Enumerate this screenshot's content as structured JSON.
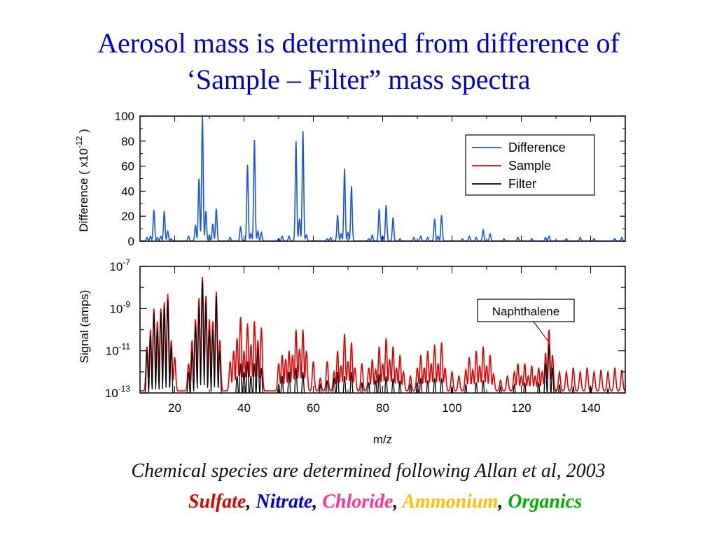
{
  "slide": {
    "title_line1": "Aerosol mass is determined from difference of",
    "title_line2": "‘Sample – Filter” mass spectra",
    "caption": "Chemical species are determined following Allan et al, 2003",
    "species": [
      {
        "label": "Sulfate",
        "color": "#e00000"
      },
      {
        "label": "Nitrate",
        "color": "#0000d0"
      },
      {
        "label": "Chloride",
        "color": "#ff3399"
      },
      {
        "label": "Ammonium",
        "color": "#ffc000"
      },
      {
        "label": "Organics",
        "color": "#00b000"
      }
    ],
    "separator": ", ",
    "title_color": "#0000cc"
  },
  "chart_data": [
    {
      "type": "line",
      "ylabel": "Difference  ( x10",
      "ylabel_exp": "-12",
      "ylabel_close": " )",
      "xlim": [
        10,
        150
      ],
      "ylim": [
        0,
        100
      ],
      "yticks": [
        "0",
        "20",
        "40",
        "60",
        "80",
        "100"
      ],
      "legend": {
        "placement": "top-right",
        "entries": [
          {
            "name": "Difference",
            "color": "#1a56d6"
          },
          {
            "name": "Sample",
            "color": "#e00000"
          },
          {
            "name": "Filter",
            "color": "#000000"
          }
        ]
      },
      "series": [
        {
          "name": "Difference",
          "color": "#1a56d6",
          "peaks": [
            [
              12,
              3
            ],
            [
              13,
              4
            ],
            [
              14,
              25
            ],
            [
              15,
              3
            ],
            [
              16,
              4
            ],
            [
              17,
              24
            ],
            [
              18,
              8
            ],
            [
              19,
              2
            ],
            [
              24,
              4
            ],
            [
              26,
              13
            ],
            [
              27,
              50
            ],
            [
              28,
              100
            ],
            [
              29,
              24
            ],
            [
              30,
              5
            ],
            [
              31,
              14
            ],
            [
              32,
              26
            ],
            [
              36,
              3
            ],
            [
              39,
              12
            ],
            [
              41,
              61
            ],
            [
              42,
              6
            ],
            [
              43,
              81
            ],
            [
              44,
              8
            ],
            [
              45,
              7
            ],
            [
              50,
              2
            ],
            [
              51,
              4
            ],
            [
              53,
              4
            ],
            [
              55,
              80
            ],
            [
              56,
              18
            ],
            [
              57,
              88
            ],
            [
              58,
              5
            ],
            [
              64,
              2
            ],
            [
              65,
              3
            ],
            [
              67,
              21
            ],
            [
              68,
              6
            ],
            [
              69,
              58
            ],
            [
              70,
              7
            ],
            [
              71,
              44
            ],
            [
              76,
              2
            ],
            [
              77,
              5
            ],
            [
              79,
              26
            ],
            [
              80,
              4
            ],
            [
              81,
              29
            ],
            [
              83,
              19
            ],
            [
              85,
              2
            ],
            [
              89,
              3
            ],
            [
              91,
              4
            ],
            [
              93,
              3
            ],
            [
              95,
              18
            ],
            [
              96,
              4
            ],
            [
              97,
              21
            ],
            [
              103,
              2
            ],
            [
              105,
              4
            ],
            [
              107,
              3
            ],
            [
              109,
              9
            ],
            [
              111,
              6
            ],
            [
              115,
              2
            ],
            [
              119,
              3
            ],
            [
              123,
              2
            ],
            [
              127,
              3
            ],
            [
              128,
              4
            ],
            [
              133,
              2
            ],
            [
              137,
              3
            ],
            [
              141,
              2
            ],
            [
              147,
              2
            ],
            [
              149,
              3
            ]
          ]
        }
      ]
    },
    {
      "type": "line",
      "ylabel": "Signal (amps)",
      "xlabel": "m/z",
      "xlim": [
        10,
        150
      ],
      "ylim_log10": [
        -13,
        -7
      ],
      "yscale": "log",
      "yticks": [
        {
          "base": "10",
          "exp": "-7"
        },
        {
          "base": "10",
          "exp": "-9"
        },
        {
          "base": "10",
          "exp": "-11"
        },
        {
          "base": "10",
          "exp": "-13"
        }
      ],
      "xticks": [
        "20",
        "40",
        "60",
        "80",
        "100",
        "120",
        "140"
      ],
      "annotation": {
        "text": "Naphthalene",
        "x": 128
      },
      "series": [
        {
          "name": "Sample",
          "color": "#e00000",
          "peaks": [
            [
              12,
              -10.8
            ],
            [
              13,
              -10.0
            ],
            [
              14,
              -9.0
            ],
            [
              15,
              -9.6
            ],
            [
              16,
              -9.0
            ],
            [
              17,
              -8.7
            ],
            [
              18,
              -8.3
            ],
            [
              19,
              -10.5
            ],
            [
              20,
              -11.3
            ],
            [
              24,
              -11.6
            ],
            [
              25,
              -10.5
            ],
            [
              26,
              -9.5
            ],
            [
              27,
              -8.5
            ],
            [
              28,
              -7.5
            ],
            [
              29,
              -8.4
            ],
            [
              30,
              -9.5
            ],
            [
              31,
              -9.6
            ],
            [
              32,
              -8.2
            ],
            [
              33,
              -10.5
            ],
            [
              36,
              -11.5
            ],
            [
              37,
              -11.0
            ],
            [
              38,
              -10.4
            ],
            [
              39,
              -9.4
            ],
            [
              40,
              -11.0
            ],
            [
              41,
              -9.7
            ],
            [
              42,
              -10.7
            ],
            [
              43,
              -9.6
            ],
            [
              44,
              -10.5
            ],
            [
              45,
              -9.9
            ],
            [
              50,
              -11.6
            ],
            [
              51,
              -11.2
            ],
            [
              52,
              -11.4
            ],
            [
              53,
              -11.0
            ],
            [
              54,
              -11.2
            ],
            [
              55,
              -10.0
            ],
            [
              56,
              -10.9
            ],
            [
              57,
              -10.0
            ],
            [
              58,
              -11.0
            ],
            [
              60,
              -11.5
            ],
            [
              62,
              -12.3
            ],
            [
              64,
              -11.5
            ],
            [
              66,
              -12.0
            ],
            [
              67,
              -11.0
            ],
            [
              68,
              -11.7
            ],
            [
              69,
              -10.2
            ],
            [
              70,
              -11.5
            ],
            [
              71,
              -10.6
            ],
            [
              72,
              -11.8
            ],
            [
              74,
              -11.6
            ],
            [
              76,
              -11.8
            ],
            [
              77,
              -11.4
            ],
            [
              78,
              -11.9
            ],
            [
              79,
              -10.8
            ],
            [
              80,
              -11.6
            ],
            [
              81,
              -10.4
            ],
            [
              82,
              -11.4
            ],
            [
              83,
              -10.8
            ],
            [
              84,
              -11.8
            ],
            [
              85,
              -11.2
            ],
            [
              86,
              -12.0
            ],
            [
              88,
              -12.2
            ],
            [
              90,
              -11.8
            ],
            [
              91,
              -11.2
            ],
            [
              92,
              -11.8
            ],
            [
              93,
              -11.0
            ],
            [
              94,
              -11.6
            ],
            [
              95,
              -10.7
            ],
            [
              96,
              -11.6
            ],
            [
              97,
              -10.6
            ],
            [
              98,
              -11.8
            ],
            [
              100,
              -12.0
            ],
            [
              102,
              -12.2
            ],
            [
              104,
              -11.9
            ],
            [
              105,
              -11.3
            ],
            [
              106,
              -11.9
            ],
            [
              107,
              -11.0
            ],
            [
              108,
              -11.7
            ],
            [
              109,
              -10.8
            ],
            [
              110,
              -11.7
            ],
            [
              111,
              -11.2
            ],
            [
              112,
              -12.1
            ],
            [
              114,
              -12.4
            ],
            [
              116,
              -12.2
            ],
            [
              118,
              -12.0
            ],
            [
              119,
              -11.6
            ],
            [
              120,
              -12.2
            ],
            [
              121,
              -11.6
            ],
            [
              122,
              -12.2
            ],
            [
              123,
              -11.7
            ],
            [
              124,
              -12.2
            ],
            [
              125,
              -11.8
            ],
            [
              126,
              -12.0
            ],
            [
              127,
              -11.1
            ],
            [
              128,
              -10.0
            ],
            [
              129,
              -11.2
            ],
            [
              131,
              -12.0
            ],
            [
              133,
              -12.0
            ],
            [
              135,
              -11.8
            ],
            [
              137,
              -12.0
            ],
            [
              139,
              -11.8
            ],
            [
              141,
              -12.0
            ],
            [
              143,
              -11.9
            ],
            [
              145,
              -12.0
            ],
            [
              147,
              -11.8
            ],
            [
              149,
              -11.9
            ]
          ]
        },
        {
          "name": "Filter",
          "color": "#000000",
          "peaks": [
            [
              12,
              -11.0
            ],
            [
              13,
              -10.3
            ],
            [
              14,
              -9.2
            ],
            [
              15,
              -10.0
            ],
            [
              16,
              -9.2
            ],
            [
              17,
              -9.0
            ],
            [
              18,
              -8.6
            ],
            [
              19,
              -10.8
            ],
            [
              24,
              -12.0
            ],
            [
              25,
              -11.0
            ],
            [
              26,
              -9.8
            ],
            [
              27,
              -8.9
            ],
            [
              28,
              -7.7
            ],
            [
              29,
              -8.7
            ],
            [
              30,
              -10.0
            ],
            [
              31,
              -10.0
            ],
            [
              32,
              -8.4
            ],
            [
              33,
              -11.0
            ],
            [
              38,
              -12.2
            ],
            [
              39,
              -11.6
            ],
            [
              40,
              -12.0
            ],
            [
              41,
              -11.5
            ],
            [
              42,
              -12.2
            ],
            [
              43,
              -11.6
            ],
            [
              44,
              -10.9
            ],
            [
              45,
              -11.8
            ],
            [
              50,
              -12.6
            ],
            [
              51,
              -12.2
            ],
            [
              53,
              -12.0
            ],
            [
              55,
              -11.8
            ],
            [
              57,
              -12.0
            ],
            [
              62,
              -12.6
            ],
            [
              64,
              -12.4
            ],
            [
              66,
              -12.3
            ],
            [
              67,
              -12.0
            ],
            [
              69,
              -12.2
            ],
            [
              71,
              -12.0
            ],
            [
              74,
              -12.5
            ],
            [
              76,
              -12.5
            ],
            [
              78,
              -12.4
            ],
            [
              79,
              -12.1
            ],
            [
              81,
              -12.2
            ],
            [
              83,
              -12.3
            ],
            [
              85,
              -12.4
            ],
            [
              88,
              -12.6
            ],
            [
              90,
              -12.5
            ],
            [
              91,
              -12.3
            ],
            [
              93,
              -12.4
            ],
            [
              95,
              -12.3
            ],
            [
              97,
              -12.3
            ],
            [
              100,
              -12.7
            ],
            [
              104,
              -12.6
            ],
            [
              107,
              -12.5
            ],
            [
              109,
              -12.4
            ],
            [
              114,
              -12.7
            ],
            [
              118,
              -12.6
            ],
            [
              121,
              -12.5
            ],
            [
              125,
              -12.5
            ],
            [
              127,
              -11.6
            ],
            [
              128,
              -10.7
            ],
            [
              129,
              -11.8
            ],
            [
              131,
              -12.6
            ],
            [
              135,
              -12.7
            ],
            [
              140,
              -12.7
            ],
            [
              145,
              -12.8
            ]
          ]
        }
      ]
    }
  ]
}
